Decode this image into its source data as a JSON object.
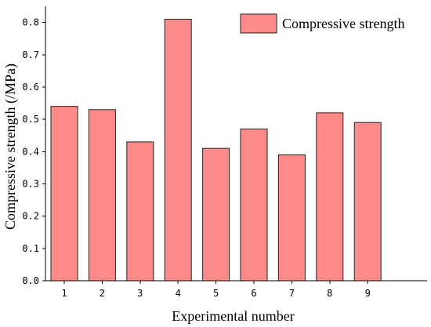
{
  "chart_data": {
    "type": "bar",
    "categories": [
      "1",
      "2",
      "3",
      "4",
      "5",
      "6",
      "7",
      "8",
      "9"
    ],
    "series": [
      {
        "name": "Compressive strength",
        "values": [
          0.54,
          0.53,
          0.43,
          0.81,
          0.41,
          0.47,
          0.39,
          0.52,
          0.49
        ],
        "color": "#ff8a8a",
        "edge_color": "#222222"
      }
    ],
    "xlabel": "Experimental number",
    "ylabel": "Compressive strength (/MPa)",
    "ylim": [
      0,
      0.85
    ],
    "yticks": [
      "0.0",
      "0.1",
      "0.2",
      "0.3",
      "0.4",
      "0.5",
      "0.6",
      "0.7",
      "0.8"
    ],
    "grid": false,
    "legend": {
      "placement": "top-right",
      "label": "Compressive strength"
    }
  }
}
